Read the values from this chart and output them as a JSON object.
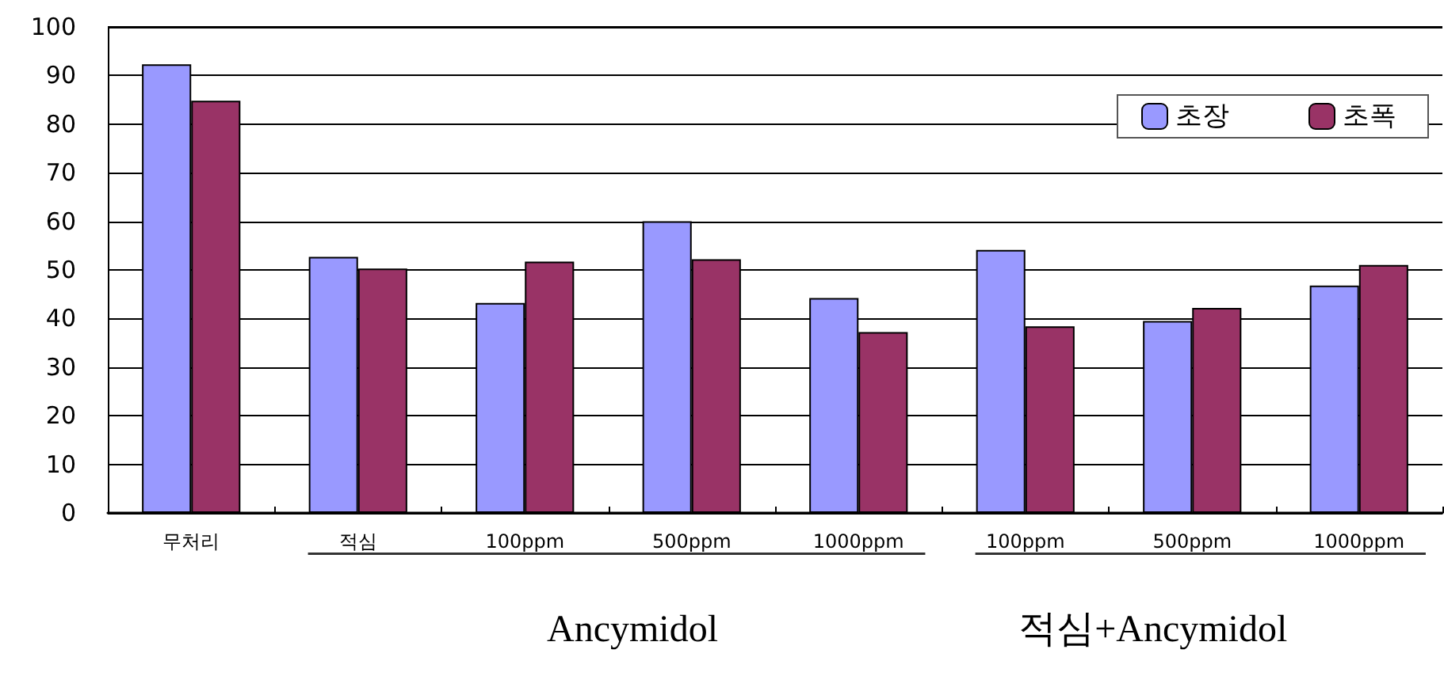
{
  "chart_data": {
    "type": "bar",
    "categories": [
      "무처리",
      "적심",
      "100ppm",
      "500ppm",
      "1000ppm",
      "100ppm",
      "500ppm",
      "1000ppm"
    ],
    "series": [
      {
        "name": "초장",
        "color": "#9999ff",
        "values": [
          92.3,
          52.7,
          43.2,
          60.0,
          44.2,
          54.1,
          39.5,
          46.8
        ]
      },
      {
        "name": "초폭",
        "color": "#993366",
        "values": [
          84.8,
          50.3,
          51.7,
          52.2,
          37.2,
          38.4,
          42.2,
          51.0
        ]
      }
    ],
    "ylim": [
      0,
      100
    ],
    "yticks": [
      0,
      10,
      20,
      30,
      40,
      50,
      60,
      70,
      80,
      90,
      100
    ],
    "grid": "y",
    "legend": "top right",
    "annotations": [
      "Ancymidol",
      "적심+Ancymidol"
    ]
  }
}
